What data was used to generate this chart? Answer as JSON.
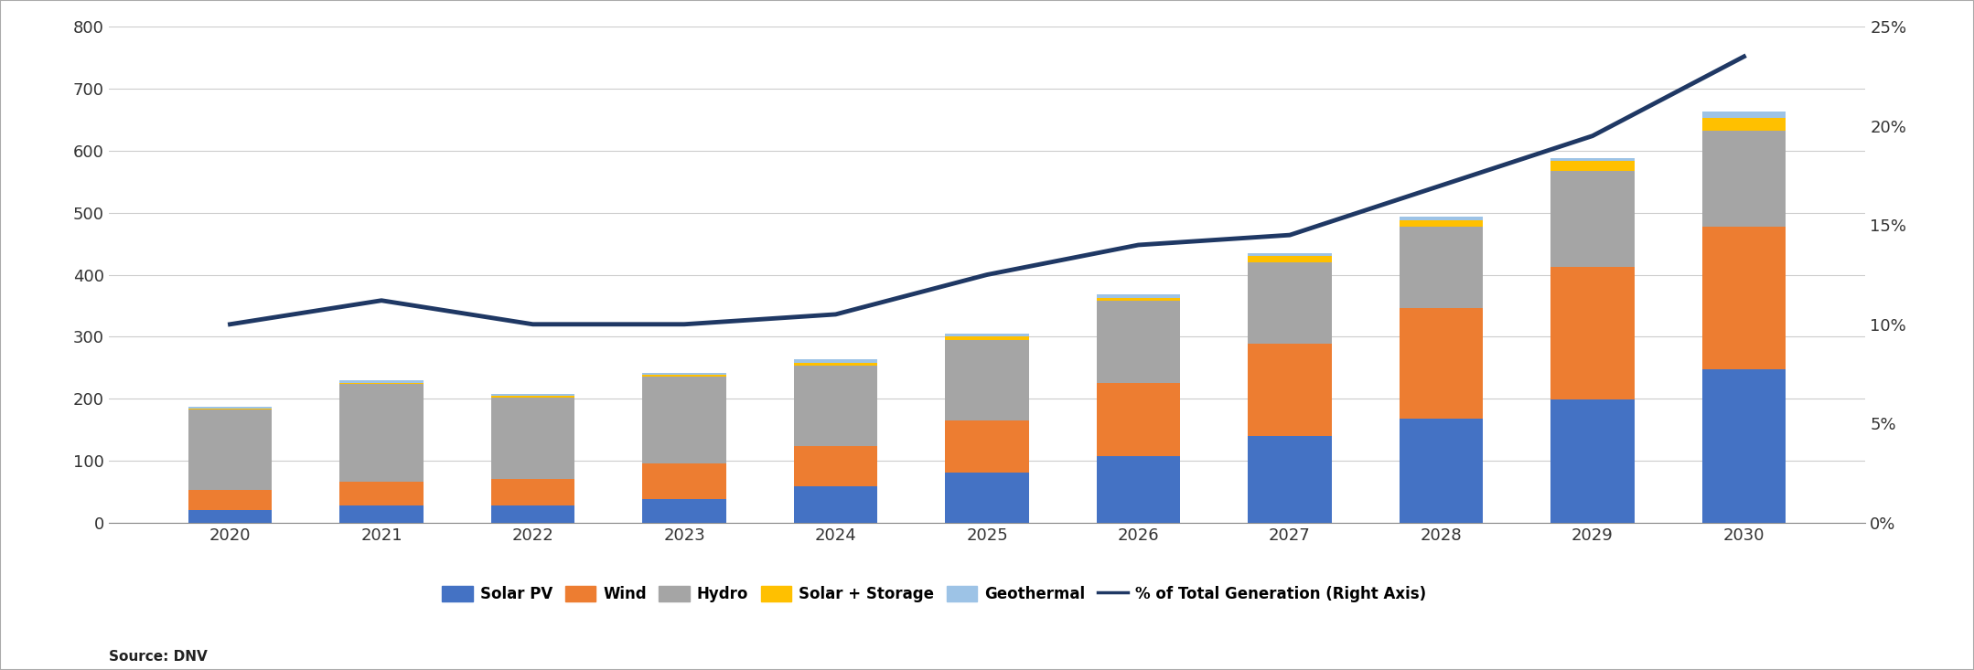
{
  "years": [
    2020,
    2021,
    2022,
    2023,
    2024,
    2025,
    2026,
    2027,
    2028,
    2029,
    2030
  ],
  "solar_pv": [
    20,
    28,
    28,
    38,
    58,
    80,
    108,
    140,
    168,
    198,
    248
  ],
  "wind": [
    32,
    38,
    42,
    58,
    65,
    85,
    118,
    148,
    178,
    215,
    230
  ],
  "hydro": [
    130,
    158,
    132,
    140,
    130,
    130,
    132,
    132,
    132,
    155,
    155
  ],
  "solar_storage": [
    2,
    2,
    2,
    2,
    5,
    5,
    5,
    10,
    10,
    15,
    20
  ],
  "geothermal": [
    3,
    4,
    4,
    4,
    5,
    5,
    5,
    5,
    5,
    5,
    10
  ],
  "pct_generation": [
    10.0,
    11.2,
    10.0,
    10.0,
    10.5,
    12.5,
    14.0,
    14.5,
    17.0,
    19.5,
    23.5
  ],
  "colors": {
    "solar_pv": "#4472C4",
    "wind": "#ED7D31",
    "hydro": "#A5A5A5",
    "solar_storage": "#FFC000",
    "geothermal": "#9DC3E6"
  },
  "line_color": "#1F3864",
  "ylim_left": [
    0,
    800
  ],
  "ylim_right": [
    0,
    25
  ],
  "yticks_left": [
    0,
    100,
    200,
    300,
    400,
    500,
    600,
    700,
    800
  ],
  "yticks_right": [
    0,
    5,
    10,
    15,
    20,
    25
  ],
  "ytick_labels_right": [
    "0%",
    "5%",
    "10%",
    "15%",
    "20%",
    "25%"
  ],
  "source_text": "Source: DNV",
  "background_color": "#FFFFFF",
  "bar_width": 0.55
}
